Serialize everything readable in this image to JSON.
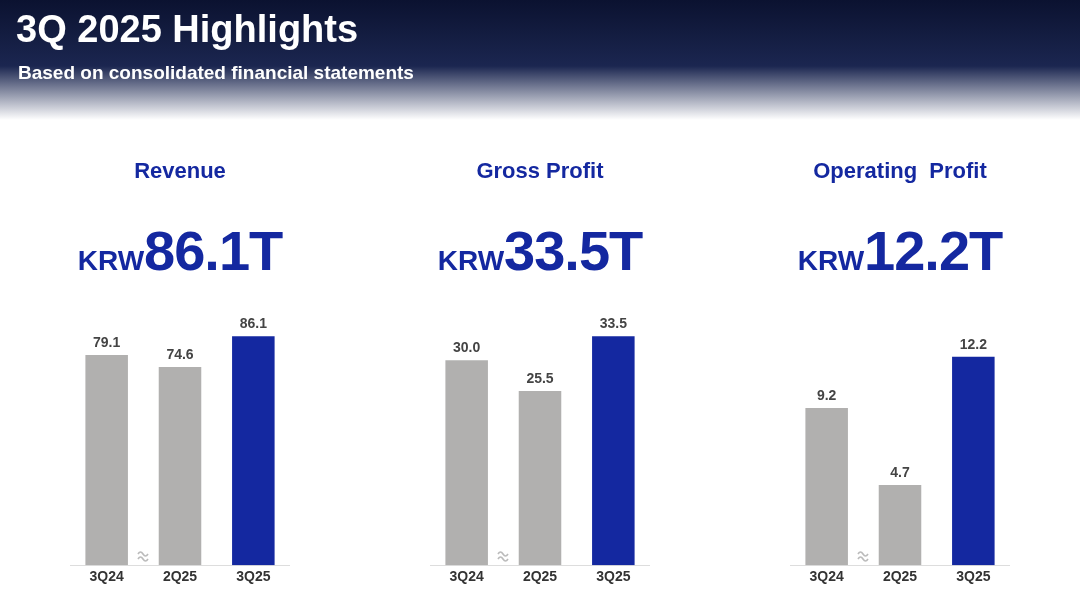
{
  "chart_data": [
    {
      "type": "other",
      "title": "3Q 2025 Highlights",
      "subtitle": "Based on consolidated financial statements"
    },
    {
      "type": "bar",
      "title": "Revenue",
      "subtitle": "KRW86.1T",
      "categories": [
        "3Q24",
        "2Q25",
        "3Q25"
      ],
      "values": [
        79.1,
        74.6,
        86.1
      ],
      "value_labels": [
        "79.1",
        "74.6",
        "86.1"
      ],
      "colors": [
        "#b1b0af",
        "#b1b0af",
        "#1428a0"
      ],
      "grid": false,
      "legend": false
    },
    {
      "type": "bar",
      "title": "Gross Profit",
      "subtitle": "KRW33.5T",
      "categories": [
        "3Q24",
        "2Q25",
        "3Q25"
      ],
      "values": [
        30.0,
        25.5,
        33.5
      ],
      "value_labels": [
        "30.0",
        "25.5",
        "33.5"
      ],
      "colors": [
        "#b1b0af",
        "#b1b0af",
        "#1428a0"
      ],
      "grid": false,
      "legend": false
    },
    {
      "type": "bar",
      "title": "Operating  Profit",
      "subtitle": "KRW12.2T",
      "categories": [
        "3Q24",
        "2Q25",
        "3Q25"
      ],
      "values": [
        9.2,
        4.7,
        12.2
      ],
      "value_labels": [
        "9.2",
        "4.7",
        "12.2"
      ],
      "colors": [
        "#b1b0af",
        "#b1b0af",
        "#1428a0"
      ],
      "grid": false,
      "legend": false
    }
  ]
}
